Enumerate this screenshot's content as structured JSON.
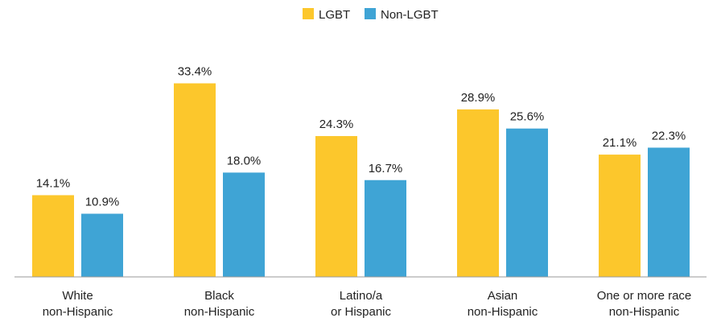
{
  "chart_data": {
    "type": "bar",
    "title": "",
    "xlabel": "",
    "ylabel": "",
    "ylim": [
      0,
      40
    ],
    "grid": false,
    "legend_position": "top-center",
    "value_format": "percent",
    "categories": [
      [
        "White",
        "non-Hispanic"
      ],
      [
        "Black",
        "non-Hispanic"
      ],
      [
        "Latino/a",
        "or Hispanic"
      ],
      [
        "Asian",
        "non-Hispanic"
      ],
      [
        "One or more race",
        "non-Hispanic"
      ]
    ],
    "series": [
      {
        "name": "LGBT",
        "color": "#fcc72c",
        "values": [
          14.1,
          33.4,
          24.3,
          28.9,
          21.1
        ]
      },
      {
        "name": "Non-LGBT",
        "color": "#3fa4d5",
        "values": [
          10.9,
          18.0,
          16.7,
          25.6,
          22.3
        ]
      }
    ]
  }
}
